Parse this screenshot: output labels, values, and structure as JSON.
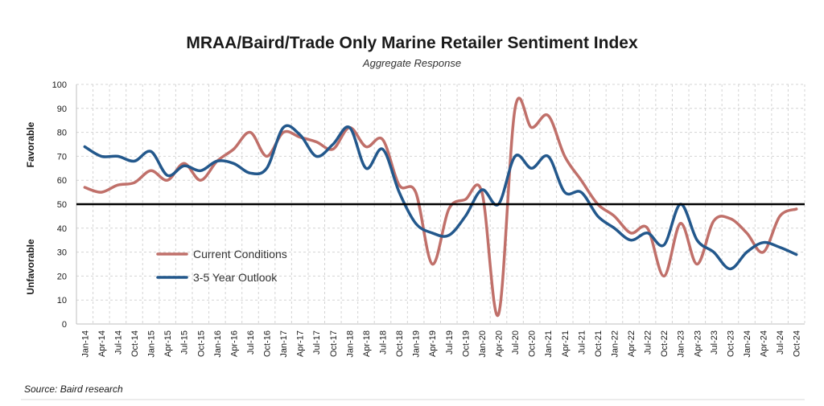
{
  "chart_data": {
    "type": "line",
    "title": "MRAA/Baird/Trade Only Marine Retailer Sentiment Index",
    "subtitle": "Aggregate Response",
    "ylabel_top": "Favorable",
    "ylabel_bottom": "Unfavorable",
    "source": "Source: Baird research",
    "ylim": [
      0,
      100
    ],
    "yticks": [
      0,
      10,
      20,
      30,
      40,
      50,
      60,
      70,
      80,
      90,
      100
    ],
    "reference_line": 50,
    "grid": true,
    "legend_position": "bottom-left",
    "x": [
      "Jan-14",
      "Apr-14",
      "Jul-14",
      "Oct-14",
      "Jan-15",
      "Apr-15",
      "Jul-15",
      "Oct-15",
      "Jan-16",
      "Apr-16",
      "Jul-16",
      "Oct-16",
      "Jan-17",
      "Apr-17",
      "Jul-17",
      "Oct-17",
      "Jan-18",
      "Apr-18",
      "Jul-18",
      "Oct-18",
      "Jan-19",
      "Apr-19",
      "Jul-19",
      "Oct-19",
      "Jan-20",
      "Apr-20",
      "Jul-20",
      "Oct-20",
      "Jan-21",
      "Apr-21",
      "Jul-21",
      "Oct-21",
      "Jan-22",
      "Apr-22",
      "Jul-22",
      "Oct-22",
      "Jan-23",
      "Apr-23",
      "Jul-23",
      "Oct-23",
      "Jan-24",
      "Apr-24",
      "Jul-24",
      "Oct-24"
    ],
    "series": [
      {
        "name": "Current Conditions",
        "color": "#c0706a",
        "values": [
          57,
          55,
          58,
          59,
          64,
          60,
          67,
          60,
          68,
          73,
          80,
          70,
          80,
          78,
          76,
          73,
          82,
          74,
          77,
          58,
          55,
          25,
          48,
          52,
          55,
          4,
          90,
          82,
          87,
          70,
          60,
          50,
          45,
          38,
          40,
          20,
          42,
          25,
          43,
          44,
          38,
          30,
          45,
          48
        ]
      },
      {
        "name": "3-5 Year Outlook",
        "color": "#23588c",
        "values": [
          74,
          70,
          70,
          68,
          72,
          62,
          66,
          64,
          68,
          67,
          63,
          65,
          82,
          79,
          70,
          75,
          82,
          65,
          73,
          55,
          42,
          38,
          37,
          45,
          56,
          50,
          70,
          65,
          70,
          55,
          55,
          45,
          40,
          35,
          38,
          33,
          50,
          35,
          30,
          23,
          30,
          34,
          32,
          29
        ]
      }
    ]
  }
}
